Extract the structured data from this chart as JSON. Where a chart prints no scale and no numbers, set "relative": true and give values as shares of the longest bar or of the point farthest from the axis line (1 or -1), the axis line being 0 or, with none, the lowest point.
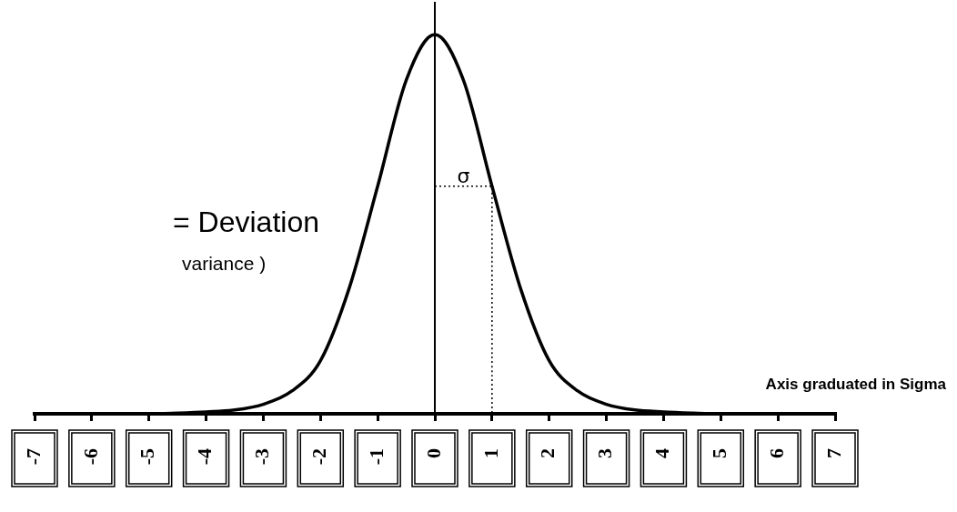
{
  "chart_data": {
    "type": "line",
    "relative": true,
    "annotations": [
      "Axis graduated in Sigma",
      "= Deviation",
      "variance )",
      {
        "text": "σ",
        "x": 0.5,
        "y": 0.6
      }
    ],
    "xlim": [
      -7,
      7
    ],
    "xticks": [
      -7,
      -6,
      -5,
      -4,
      -3,
      -2,
      -1,
      0,
      1,
      2,
      3,
      4,
      5,
      6,
      7
    ],
    "grid": false,
    "legend": false,
    "marker": "none",
    "ref_lines": [
      {
        "axis": "x",
        "value": 0,
        "color": "#000000",
        "line_style": "solid"
      }
    ],
    "series": [
      {
        "color": "#000000",
        "line_style": "solid",
        "x": [
          -7,
          -5,
          -4.5,
          -4,
          -3.5,
          -3,
          -2.5,
          -2,
          -1.5,
          -1,
          -0.5,
          0,
          0.5,
          1,
          1.5,
          2,
          2.5,
          3,
          3.5,
          4,
          4.5,
          5,
          7
        ],
        "values": [
          0,
          0,
          0.002,
          0.005,
          0.01,
          0.025,
          0.06,
          0.14,
          0.33,
          0.6,
          0.88,
          1,
          0.88,
          0.6,
          0.33,
          0.14,
          0.06,
          0.025,
          0.01,
          0.005,
          0.002,
          0,
          0
        ]
      },
      {
        "color": "#000000",
        "line_style": "dotted",
        "x": [
          0,
          1,
          1
        ],
        "values": [
          0.6,
          0.6,
          0
        ]
      }
    ]
  }
}
